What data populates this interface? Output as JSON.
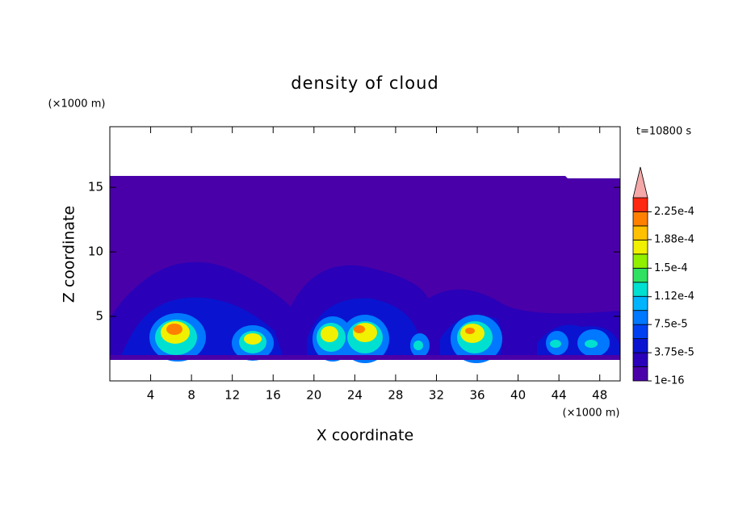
{
  "chart_data": {
    "type": "contour",
    "title": "density of cloud",
    "x_label": "X coordinate",
    "y_label": "Z coordinate",
    "x_unit": "(×1000 m)",
    "y_unit": "(×1000 m)",
    "annotation": "t=10800 s",
    "xlim": [
      0,
      50
    ],
    "xticks": [
      4,
      8,
      12,
      16,
      20,
      24,
      28,
      32,
      36,
      40,
      44,
      48
    ],
    "ylim": [
      0,
      19.7
    ],
    "yticks": [
      5,
      10,
      15
    ],
    "colorbar": {
      "lim": [
        1e-16,
        0.00024375
      ],
      "colors": [
        "#4a00a8",
        "#2a00b8",
        "#0a14d0",
        "#0040f0",
        "#0078ff",
        "#00b4ff",
        "#00e0d0",
        "#30e060",
        "#90f000",
        "#f0f000",
        "#ffc000",
        "#ff8000",
        "#ff2810"
      ],
      "extend_color": "#f4a8a8",
      "ticks": [
        {
          "value": 1e-16,
          "label": "1e-16"
        },
        {
          "value": 3.75e-05,
          "label": "3.75e-5"
        },
        {
          "value": 7.5e-05,
          "label": "7.5e-5"
        },
        {
          "value": 0.000112,
          "label": "1.12e-4"
        },
        {
          "value": 0.00015,
          "label": "1.5e-4"
        },
        {
          "value": 0.000188,
          "label": "1.88e-4"
        },
        {
          "value": 0.000225,
          "label": "2.25e-4"
        }
      ]
    }
  }
}
